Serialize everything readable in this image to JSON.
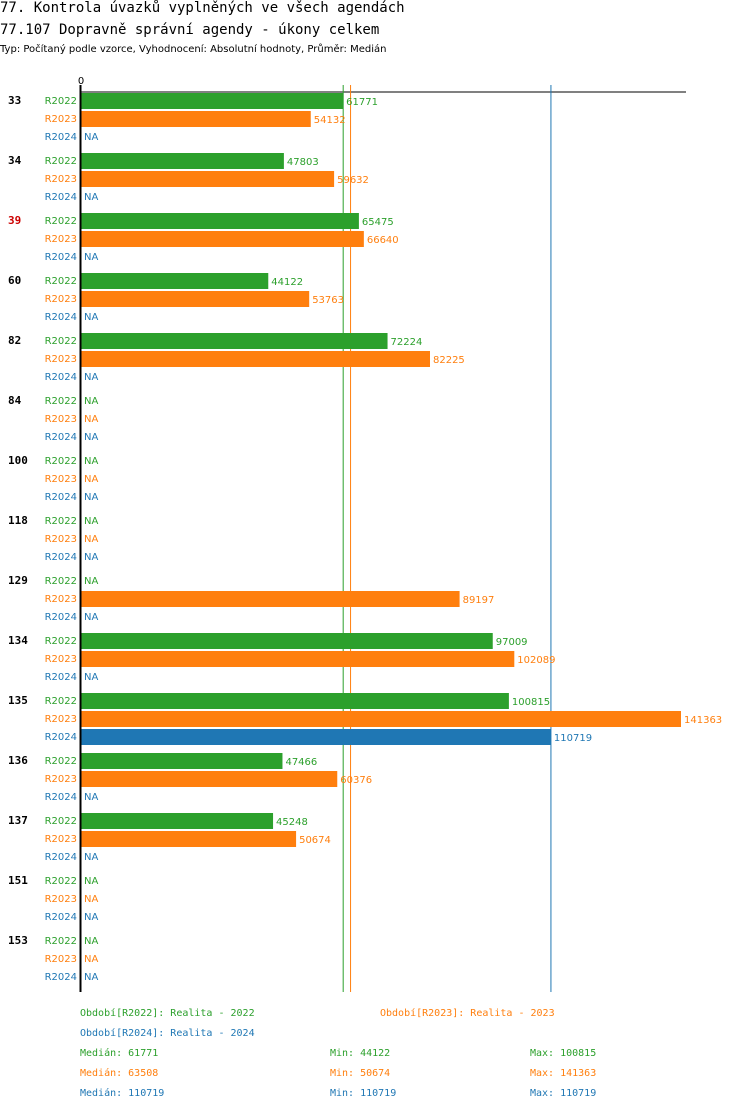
{
  "header": {
    "title1": "77. Kontrola úvazků vyplněných ve všech agendách",
    "title2": "77.107 Dopravně správní agendy - úkony celkem",
    "subtitle": "Typ: Počítaný podle vzorce, Vyhodnocení: Absolutní hodnoty, Průměr: Medián"
  },
  "chart_data": {
    "type": "bar",
    "orientation": "horizontal",
    "x_tick_label": "0",
    "xlim": [
      0,
      141363
    ],
    "na_label": "NA",
    "categories": [
      {
        "label": "33",
        "highlight": false
      },
      {
        "label": "34",
        "highlight": false
      },
      {
        "label": "39",
        "highlight": true
      },
      {
        "label": "60",
        "highlight": false
      },
      {
        "label": "82",
        "highlight": false
      },
      {
        "label": "84",
        "highlight": false
      },
      {
        "label": "100",
        "highlight": false
      },
      {
        "label": "118",
        "highlight": false
      },
      {
        "label": "129",
        "highlight": false
      },
      {
        "label": "134",
        "highlight": false
      },
      {
        "label": "135",
        "highlight": false
      },
      {
        "label": "136",
        "highlight": false
      },
      {
        "label": "137",
        "highlight": false
      },
      {
        "label": "151",
        "highlight": false
      },
      {
        "label": "153",
        "highlight": false
      }
    ],
    "series": [
      {
        "name": "R2022",
        "color": "#2ca02c",
        "values": [
          61771,
          47803,
          65475,
          44122,
          72224,
          null,
          null,
          null,
          null,
          97009,
          100815,
          47466,
          45248,
          null,
          null
        ]
      },
      {
        "name": "R2023",
        "color": "#ff7f0e",
        "values": [
          54132,
          59632,
          66640,
          53763,
          82225,
          null,
          null,
          null,
          89197,
          102089,
          141363,
          60376,
          50674,
          null,
          null
        ]
      },
      {
        "name": "R2024",
        "color": "#1f77b4",
        "values": [
          null,
          null,
          null,
          null,
          null,
          null,
          null,
          null,
          null,
          null,
          110719,
          null,
          null,
          null,
          null
        ]
      }
    ],
    "reference_lines": [
      {
        "series": "R2022",
        "value": 61771,
        "color": "#2ca02c"
      },
      {
        "series": "R2023",
        "value": 63508,
        "color": "#ff7f0e"
      },
      {
        "series": "R2024",
        "value": 110719,
        "color": "#1f77b4"
      }
    ]
  },
  "legend": {
    "r2022_label": "Období[R2022]: Realita - 2022",
    "r2023_label": "Období[R2023]: Realita - 2023",
    "r2024_label": "Období[R2024]: Realita - 2024",
    "stats": [
      {
        "median": "Medián: 61771",
        "min": "Min: 44122",
        "max": "Max: 100815",
        "color": "#2ca02c"
      },
      {
        "median": "Medián: 63508",
        "min": "Min: 50674",
        "max": "Max: 141363",
        "color": "#ff7f0e"
      },
      {
        "median": "Medián: 110719",
        "min": "Min: 110719",
        "max": "Max: 110719",
        "color": "#1f77b4"
      }
    ]
  }
}
